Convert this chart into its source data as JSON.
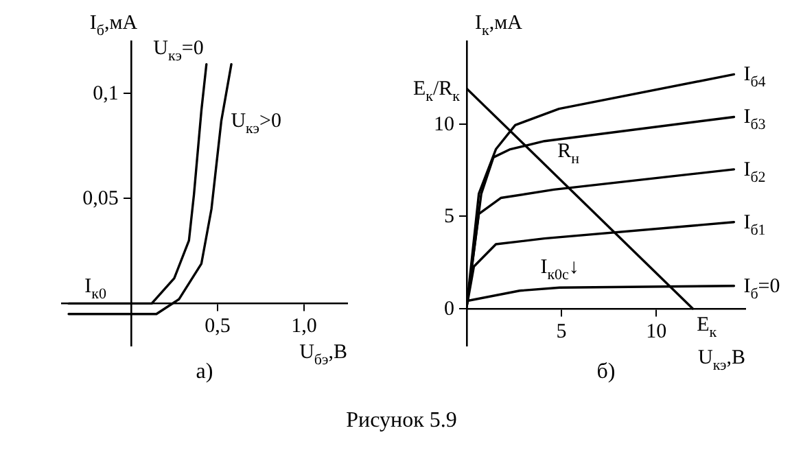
{
  "chart_data": [
    {
      "type": "line",
      "title": "а)",
      "xlabel": "U$_{бэ}$,В",
      "ylabel": "I$_{б}$,мА",
      "xlim": [
        -0.4,
        1.25
      ],
      "ylim": [
        -0.02,
        0.125
      ],
      "xticks": [
        {
          "value": 0.5,
          "label": "0,5"
        },
        {
          "value": 1,
          "label": "1,0"
        }
      ],
      "yticks": [
        {
          "value": 0.05,
          "label": "0,05"
        },
        {
          "value": 0.1,
          "label": "0,1"
        }
      ],
      "grid": false,
      "series": [
        {
          "name": "U$_{кэ}$=0",
          "color": "#000000",
          "x": [
            -0.36,
            0.12,
            0.25,
            0.335,
            0.364,
            0.407,
            0.436
          ],
          "values": [
            0,
            0,
            0.012,
            0.03,
            0.052,
            0.092,
            0.114
          ]
        },
        {
          "name": "U$_{кэ}$>0",
          "color": "#000000",
          "x": [
            -0.36,
            0.147,
            0.277,
            0.407,
            0.465,
            0.522,
            0.58
          ],
          "values": [
            -0.005,
            -0.005,
            0.002,
            0.019,
            0.045,
            0.087,
            0.114
          ]
        }
      ],
      "annotations": [
        {
          "text": "I$_{к0}$",
          "x": -0.3,
          "y": 0
        }
      ]
    },
    {
      "type": "line",
      "title": "б)",
      "xlabel": "U$_{кэ}$,В",
      "ylabel": "I$_{к}$,мА",
      "xlim": [
        0,
        14.7
      ],
      "ylim": [
        -2,
        14.5
      ],
      "xticks": [
        5,
        10
      ],
      "yticks": [
        0,
        5,
        10
      ],
      "grid": false,
      "series": [
        {
          "name": "I$_{б}$=0",
          "color": "#000000",
          "x": [
            0,
            2.8,
            4.9,
            14.1
          ],
          "values": [
            0.41,
            0.97,
            1.14,
            1.23
          ]
        },
        {
          "name": "I$_{б1}$",
          "color": "#000000",
          "x": [
            0,
            0.38,
            1.54,
            4.1,
            14.1
          ],
          "values": [
            0.1,
            2.28,
            3.49,
            3.8,
            4.69
          ]
        },
        {
          "name": "I$_{б2}$",
          "color": "#000000",
          "x": [
            0,
            0.64,
            1.8,
            4.6,
            14.1
          ],
          "values": [
            0.1,
            5.13,
            6,
            6.45,
            7.55
          ]
        },
        {
          "name": "I$_{б3}$",
          "color": "#000000",
          "x": [
            0,
            0.77,
            1.41,
            2.3,
            4.1,
            14.1
          ],
          "values": [
            0.1,
            6.23,
            8.2,
            8.64,
            9.08,
            10.39
          ]
        },
        {
          "name": "I$_{б4}$",
          "color": "#000000",
          "x": [
            0,
            0.64,
            1.54,
            2.56,
            4.87,
            14.1
          ],
          "values": [
            0.1,
            6.23,
            8.64,
            9.95,
            10.83,
            12.7
          ]
        },
        {
          "type": "line",
          "color": "#000000",
          "x": [
            0,
            11.92
          ],
          "values": [
            11.93,
            0
          ]
        }
      ],
      "annotations": [
        {
          "text": "E$_{к}$/R$_{к}$",
          "x": 0,
          "y": 11.93
        },
        {
          "text": "R$_{н}$",
          "x": 4.5,
          "y": 7.6
        },
        {
          "text": "E$_{к}$",
          "x": 11.92,
          "y": 0
        },
        {
          "text": "I$_{к0с}$↓",
          "x": 3.6,
          "y": 1.3
        },
        "Рисунок 5.9"
      ]
    }
  ]
}
